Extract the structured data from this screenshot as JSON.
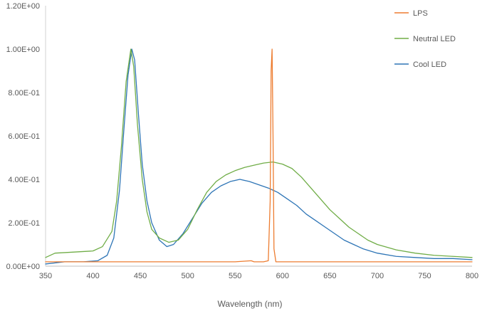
{
  "chart_data": {
    "type": "line",
    "title": "",
    "xlabel": "Wavelength (nm)",
    "ylabel": "",
    "xlim": [
      350,
      800
    ],
    "ylim": [
      0,
      1.2
    ],
    "grid": false,
    "legend_position": "top-right",
    "x_ticks": [
      "350",
      "400",
      "450",
      "500",
      "550",
      "600",
      "650",
      "700",
      "750",
      "800"
    ],
    "y_ticks": [
      "0.00E+00",
      "2.00E-01",
      "4.00E-01",
      "6.00E-01",
      "8.00E-01",
      "1.00E+00",
      "1.20E+00"
    ],
    "series": [
      {
        "name": "LPS",
        "color": "#ED7D31",
        "points": [
          [
            350,
            0.02
          ],
          [
            400,
            0.02
          ],
          [
            450,
            0.02
          ],
          [
            500,
            0.02
          ],
          [
            550,
            0.02
          ],
          [
            567,
            0.025
          ],
          [
            570,
            0.02
          ],
          [
            580,
            0.02
          ],
          [
            585,
            0.025
          ],
          [
            587,
            0.3
          ],
          [
            588,
            0.9
          ],
          [
            589,
            1.0
          ],
          [
            590,
            0.6
          ],
          [
            591,
            0.08
          ],
          [
            593,
            0.02
          ],
          [
            600,
            0.02
          ],
          [
            650,
            0.02
          ],
          [
            700,
            0.02
          ],
          [
            750,
            0.02
          ],
          [
            800,
            0.02
          ]
        ]
      },
      {
        "name": "Neutral LED",
        "color": "#70AD47",
        "points": [
          [
            350,
            0.04
          ],
          [
            360,
            0.06
          ],
          [
            380,
            0.065
          ],
          [
            400,
            0.07
          ],
          [
            410,
            0.09
          ],
          [
            420,
            0.16
          ],
          [
            425,
            0.3
          ],
          [
            430,
            0.55
          ],
          [
            435,
            0.85
          ],
          [
            440,
            1.0
          ],
          [
            443,
            0.92
          ],
          [
            447,
            0.65
          ],
          [
            452,
            0.4
          ],
          [
            457,
            0.25
          ],
          [
            462,
            0.17
          ],
          [
            470,
            0.13
          ],
          [
            480,
            0.11
          ],
          [
            490,
            0.12
          ],
          [
            500,
            0.17
          ],
          [
            510,
            0.26
          ],
          [
            520,
            0.34
          ],
          [
            530,
            0.39
          ],
          [
            540,
            0.42
          ],
          [
            550,
            0.44
          ],
          [
            560,
            0.455
          ],
          [
            570,
            0.465
          ],
          [
            580,
            0.475
          ],
          [
            590,
            0.48
          ],
          [
            600,
            0.47
          ],
          [
            610,
            0.45
          ],
          [
            620,
            0.41
          ],
          [
            630,
            0.36
          ],
          [
            640,
            0.31
          ],
          [
            650,
            0.26
          ],
          [
            660,
            0.22
          ],
          [
            670,
            0.18
          ],
          [
            680,
            0.15
          ],
          [
            690,
            0.12
          ],
          [
            700,
            0.1
          ],
          [
            720,
            0.075
          ],
          [
            740,
            0.06
          ],
          [
            760,
            0.05
          ],
          [
            780,
            0.045
          ],
          [
            800,
            0.04
          ]
        ]
      },
      {
        "name": "Cool LED",
        "color": "#2E75B6",
        "points": [
          [
            350,
            0.01
          ],
          [
            370,
            0.02
          ],
          [
            390,
            0.02
          ],
          [
            405,
            0.025
          ],
          [
            415,
            0.05
          ],
          [
            422,
            0.13
          ],
          [
            428,
            0.35
          ],
          [
            433,
            0.65
          ],
          [
            437,
            0.88
          ],
          [
            441,
            1.0
          ],
          [
            444,
            0.95
          ],
          [
            448,
            0.7
          ],
          [
            452,
            0.47
          ],
          [
            457,
            0.3
          ],
          [
            462,
            0.2
          ],
          [
            470,
            0.12
          ],
          [
            478,
            0.09
          ],
          [
            485,
            0.1
          ],
          [
            495,
            0.15
          ],
          [
            505,
            0.22
          ],
          [
            515,
            0.29
          ],
          [
            525,
            0.34
          ],
          [
            535,
            0.37
          ],
          [
            545,
            0.39
          ],
          [
            555,
            0.4
          ],
          [
            565,
            0.39
          ],
          [
            575,
            0.375
          ],
          [
            585,
            0.36
          ],
          [
            595,
            0.34
          ],
          [
            605,
            0.31
          ],
          [
            615,
            0.28
          ],
          [
            625,
            0.24
          ],
          [
            635,
            0.21
          ],
          [
            645,
            0.18
          ],
          [
            655,
            0.15
          ],
          [
            665,
            0.12
          ],
          [
            675,
            0.1
          ],
          [
            685,
            0.08
          ],
          [
            700,
            0.06
          ],
          [
            720,
            0.045
          ],
          [
            740,
            0.04
          ],
          [
            760,
            0.035
          ],
          [
            780,
            0.035
          ],
          [
            800,
            0.03
          ]
        ]
      }
    ]
  }
}
